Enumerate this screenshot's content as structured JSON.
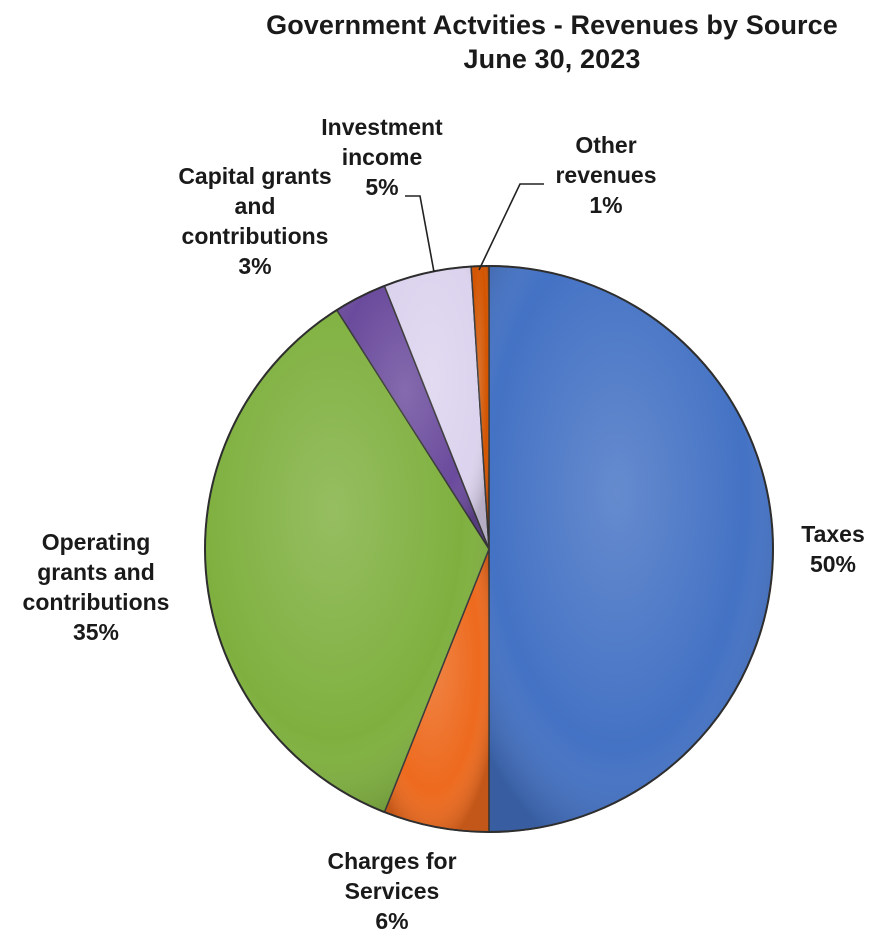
{
  "chart_data": {
    "type": "pie",
    "title": "Government Actvities - Revenues by Source",
    "subtitle": "June 30, 2023",
    "slices": [
      {
        "label_lines": [
          "Taxes",
          "50%"
        ],
        "value": 50,
        "color": "#4472C4"
      },
      {
        "label_lines": [
          "Charges for",
          "Services",
          "6%"
        ],
        "value": 6,
        "color": "#ED6A1E"
      },
      {
        "label_lines": [
          "Operating",
          "grants and",
          "contributions",
          "35%"
        ],
        "value": 35,
        "color": "#7FB03F"
      },
      {
        "label_lines": [
          "Capital grants",
          "and",
          "contributions",
          "3%"
        ],
        "value": 3,
        "color": "#6A4A9C"
      },
      {
        "label_lines": [
          "Investment",
          "income",
          "5%"
        ],
        "value": 5,
        "color": "#DCD3EE"
      },
      {
        "label_lines": [
          "Other",
          "revenues",
          "1%"
        ],
        "value": 1,
        "color": "#D35400"
      }
    ]
  }
}
